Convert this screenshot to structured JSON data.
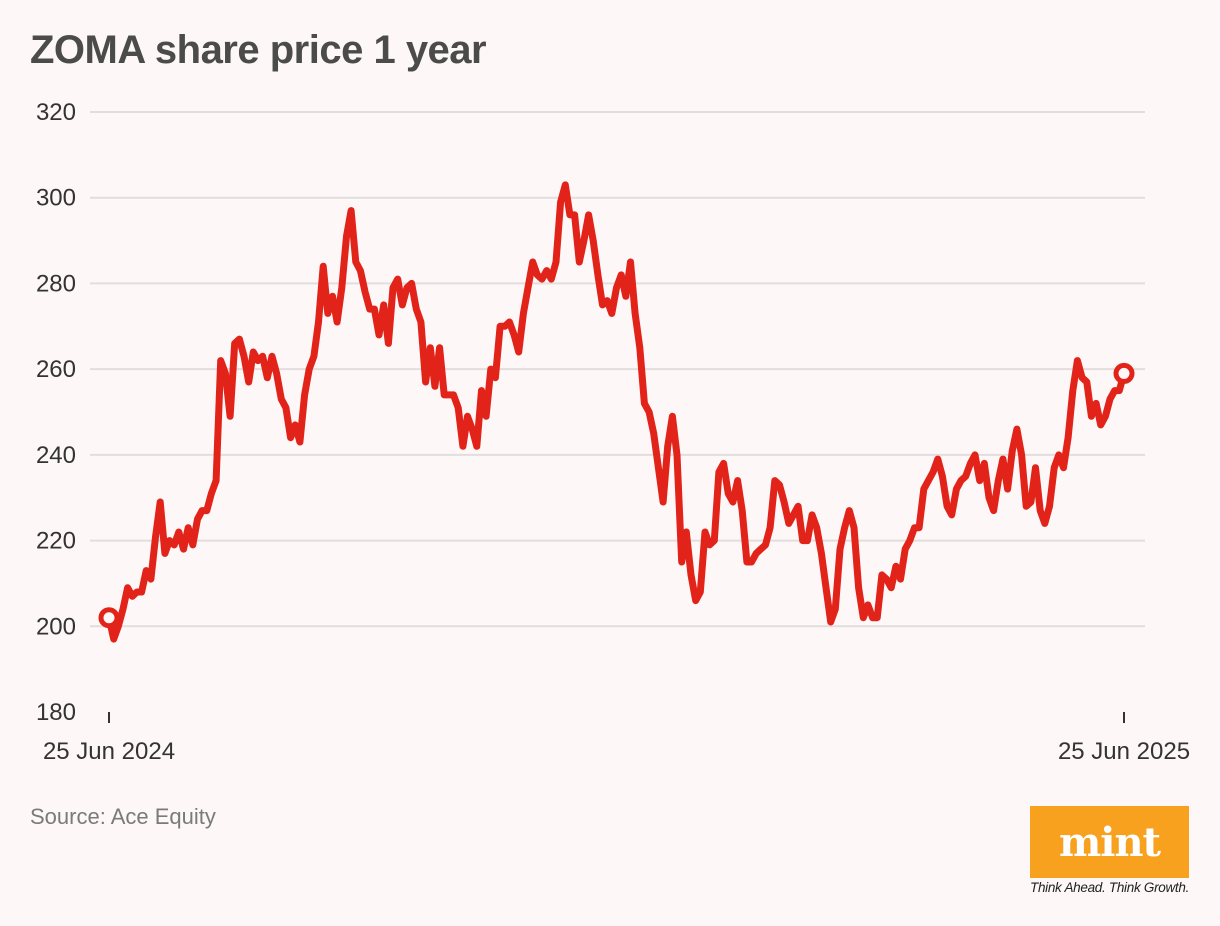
{
  "chart_data": {
    "type": "line",
    "title": "ZOMA share price 1 year",
    "xlabel": "",
    "ylabel": "",
    "ylim": [
      180,
      320
    ],
    "yticks": [
      180,
      200,
      220,
      240,
      260,
      280,
      300,
      320
    ],
    "xticks": [
      "25 Jun 2024",
      "25 Jun 2025"
    ],
    "x_range": [
      "2024-06-25",
      "2025-06-25"
    ],
    "grid": true,
    "line_color": "#e2231a",
    "endpoint_markers": true,
    "values": [
      202,
      197,
      200,
      204,
      209,
      207,
      208,
      208,
      213,
      211,
      221,
      229,
      217,
      220,
      219,
      222,
      218,
      223,
      219,
      225,
      227,
      227,
      231,
      234,
      262,
      259,
      249,
      266,
      267,
      263,
      257,
      264,
      262,
      263,
      258,
      263,
      259,
      253,
      251,
      244,
      247,
      243,
      254,
      260,
      263,
      271,
      284,
      273,
      277,
      271,
      279,
      291,
      297,
      285,
      283,
      278,
      274,
      274,
      268,
      275,
      266,
      279,
      281,
      275,
      279,
      280,
      274,
      271,
      257,
      265,
      256,
      265,
      254,
      254,
      254,
      251,
      242,
      249,
      246,
      242,
      255,
      249,
      260,
      258,
      270,
      270,
      271,
      268,
      264,
      273,
      279,
      285,
      282,
      281,
      283,
      281,
      285,
      299,
      303,
      296,
      296,
      285,
      290,
      296,
      290,
      282,
      275,
      276,
      273,
      279,
      282,
      277,
      285,
      273,
      265,
      252,
      250,
      245,
      237,
      229,
      242,
      249,
      240,
      215,
      222,
      212,
      206,
      208,
      222,
      219,
      220,
      236,
      238,
      231,
      229,
      234,
      227,
      215,
      215,
      217,
      218,
      219,
      223,
      234,
      233,
      229,
      224,
      226,
      228,
      220,
      220,
      226,
      223,
      217,
      209,
      201,
      204,
      218,
      223,
      227,
      223,
      209,
      202,
      205,
      202,
      202,
      212,
      211,
      209,
      214,
      211,
      218,
      220,
      223,
      223,
      232,
      234,
      236,
      239,
      235,
      228,
      226,
      232,
      234,
      235,
      238,
      240,
      234,
      238,
      230,
      227,
      234,
      239,
      232,
      241,
      246,
      240,
      228,
      229,
      237,
      227,
      224,
      228,
      237,
      240,
      237,
      244,
      255,
      262,
      258,
      257,
      249,
      252,
      247,
      249,
      253,
      255,
      255,
      259
    ]
  },
  "source": "Source: Ace Equity",
  "logo": {
    "text": "mint",
    "tagline": "Think Ahead. Think Growth.",
    "color": "#f7a11f"
  }
}
